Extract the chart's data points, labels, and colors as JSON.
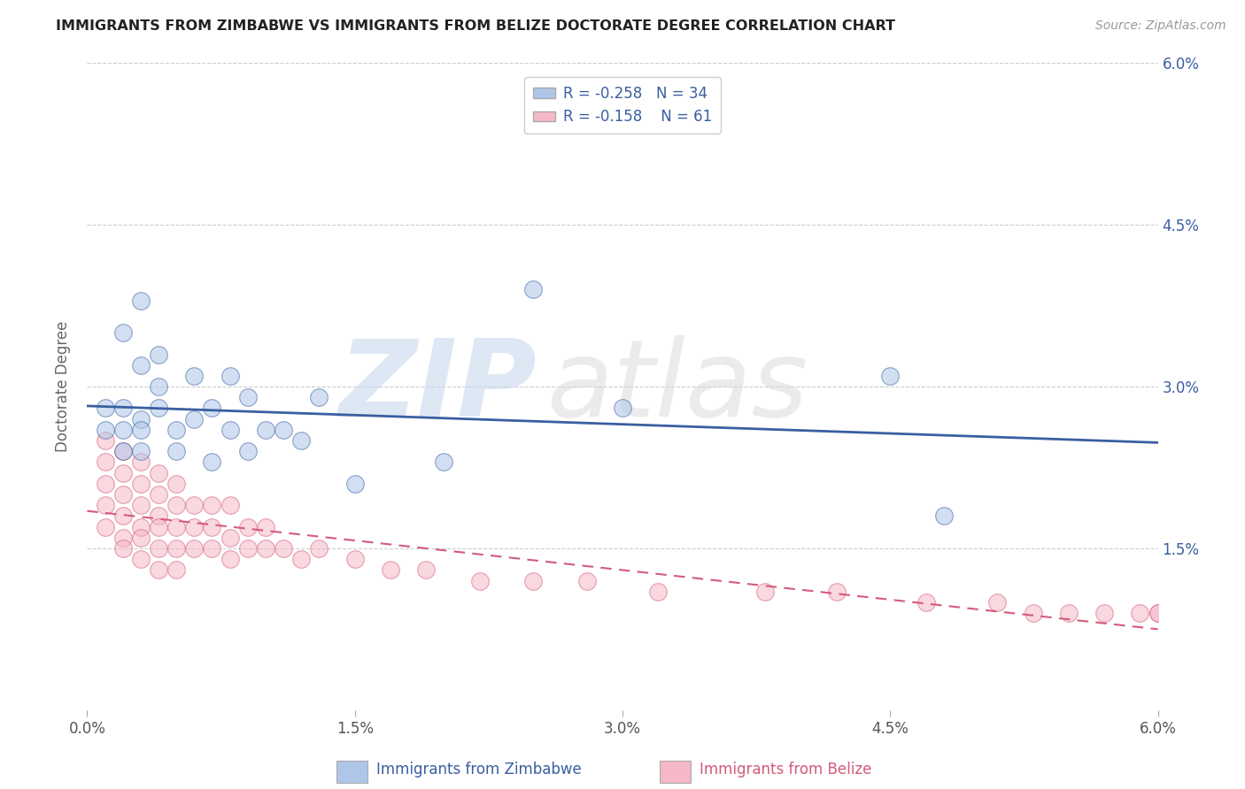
{
  "title": "IMMIGRANTS FROM ZIMBABWE VS IMMIGRANTS FROM BELIZE DOCTORATE DEGREE CORRELATION CHART",
  "source": "Source: ZipAtlas.com",
  "ylabel": "Doctorate Degree",
  "xlim": [
    0.0,
    0.06
  ],
  "ylim": [
    0.0,
    0.06
  ],
  "x_tick_labels": [
    "0.0%",
    "1.5%",
    "3.0%",
    "4.5%",
    "6.0%"
  ],
  "x_tick_vals": [
    0.0,
    0.015,
    0.03,
    0.045,
    0.06
  ],
  "y_tick_labels": [
    "1.5%",
    "3.0%",
    "4.5%",
    "6.0%"
  ],
  "y_tick_vals": [
    0.015,
    0.03,
    0.045,
    0.06
  ],
  "legend_r1": "R = -0.258",
  "legend_n1": "N = 34",
  "legend_r2": "R = -0.158",
  "legend_n2": "N = 61",
  "color_zimbabwe": "#aec6e8",
  "color_belize": "#f5b8c8",
  "line_color_zimbabwe": "#3a5fa0",
  "line_color_belize": "#d45b7a",
  "background_color": "#ffffff",
  "label_zimbabwe": "Immigrants from Zimbabwe",
  "label_belize": "Immigrants from Belize",
  "zimbabwe_x": [
    0.001,
    0.001,
    0.002,
    0.002,
    0.002,
    0.003,
    0.003,
    0.003,
    0.003,
    0.004,
    0.004,
    0.004,
    0.005,
    0.005,
    0.006,
    0.006,
    0.007,
    0.007,
    0.008,
    0.008,
    0.009,
    0.009,
    0.01,
    0.011,
    0.012,
    0.013,
    0.015,
    0.02,
    0.025,
    0.03,
    0.045,
    0.048,
    0.002,
    0.003
  ],
  "zimbabwe_y": [
    0.028,
    0.026,
    0.028,
    0.026,
    0.024,
    0.032,
    0.027,
    0.026,
    0.024,
    0.033,
    0.03,
    0.028,
    0.026,
    0.024,
    0.031,
    0.027,
    0.028,
    0.023,
    0.031,
    0.026,
    0.029,
    0.024,
    0.026,
    0.026,
    0.025,
    0.029,
    0.021,
    0.023,
    0.039,
    0.028,
    0.031,
    0.018,
    0.035,
    0.038
  ],
  "belize_x": [
    0.001,
    0.001,
    0.001,
    0.001,
    0.001,
    0.002,
    0.002,
    0.002,
    0.002,
    0.002,
    0.002,
    0.003,
    0.003,
    0.003,
    0.003,
    0.003,
    0.003,
    0.004,
    0.004,
    0.004,
    0.004,
    0.004,
    0.004,
    0.005,
    0.005,
    0.005,
    0.005,
    0.005,
    0.006,
    0.006,
    0.006,
    0.007,
    0.007,
    0.007,
    0.008,
    0.008,
    0.008,
    0.009,
    0.009,
    0.01,
    0.01,
    0.011,
    0.012,
    0.013,
    0.015,
    0.017,
    0.019,
    0.022,
    0.025,
    0.028,
    0.032,
    0.038,
    0.042,
    0.047,
    0.051,
    0.053,
    0.055,
    0.057,
    0.059,
    0.06,
    0.06
  ],
  "belize_y": [
    0.025,
    0.023,
    0.021,
    0.019,
    0.017,
    0.024,
    0.022,
    0.02,
    0.018,
    0.016,
    0.015,
    0.023,
    0.021,
    0.019,
    0.017,
    0.016,
    0.014,
    0.022,
    0.02,
    0.018,
    0.017,
    0.015,
    0.013,
    0.021,
    0.019,
    0.017,
    0.015,
    0.013,
    0.019,
    0.017,
    0.015,
    0.019,
    0.017,
    0.015,
    0.019,
    0.016,
    0.014,
    0.017,
    0.015,
    0.017,
    0.015,
    0.015,
    0.014,
    0.015,
    0.014,
    0.013,
    0.013,
    0.012,
    0.012,
    0.012,
    0.011,
    0.011,
    0.011,
    0.01,
    0.01,
    0.009,
    0.009,
    0.009,
    0.009,
    0.009,
    0.009
  ]
}
